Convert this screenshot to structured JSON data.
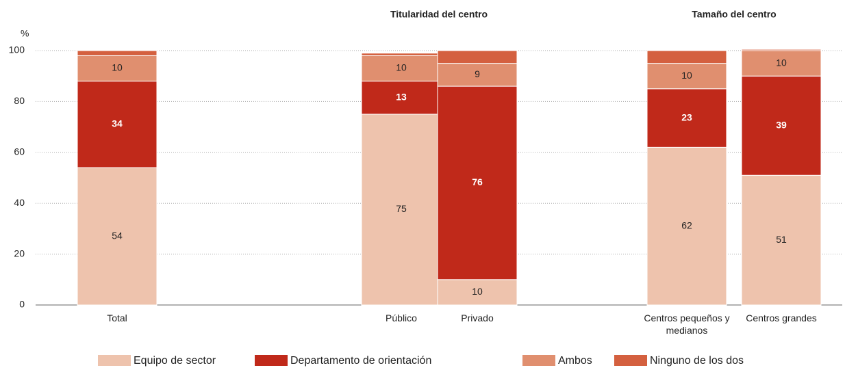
{
  "chart_data": {
    "type": "stacked_bar",
    "y_label": "%",
    "group_titles": [
      "Titularidad del centro",
      "Tamaño  del centro"
    ],
    "categories": [
      "Total",
      "Público",
      "Privado",
      "Centros pequeños y medianos",
      "Centros grandes"
    ],
    "series": [
      {
        "name": "Equipo de sector",
        "color": "#eec3ad",
        "values": [
          54,
          75,
          10,
          62,
          51
        ]
      },
      {
        "name": "Departamento de orientación",
        "color": "#c0291a",
        "values": [
          34,
          13,
          76,
          23,
          39
        ]
      },
      {
        "name": "Ambos",
        "color": "#e08f6f",
        "values": [
          10,
          10,
          9,
          10,
          10
        ]
      },
      {
        "name": "Ninguno de los dos",
        "color": "#d4603f",
        "values": [
          2,
          1,
          5,
          5,
          0.5
        ],
        "value_labels": [
          null,
          null,
          null,
          null,
          null
        ]
      }
    ],
    "ylim": [
      0,
      100
    ],
    "yticks": [
      0,
      20,
      40,
      60,
      80,
      100
    ],
    "grid": true
  }
}
